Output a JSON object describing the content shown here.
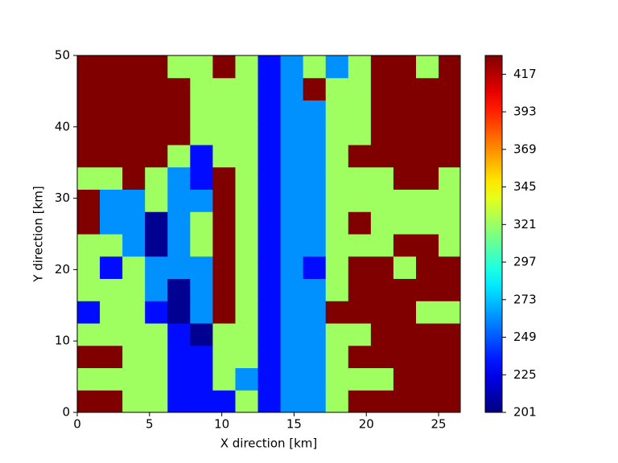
{
  "chart_data": {
    "type": "heatmap",
    "colormap": "jet",
    "xlabel": "X direction [km]",
    "ylabel": "Y direction [km]",
    "xlim": [
      0,
      26.5
    ],
    "ylim": [
      0,
      50
    ],
    "xticks": [
      0,
      5,
      10,
      15,
      20,
      25
    ],
    "yticks": [
      0,
      10,
      20,
      30,
      40,
      50
    ],
    "clim": [
      201,
      429
    ],
    "cticks": [
      201,
      225,
      249,
      273,
      297,
      321,
      345,
      369,
      393,
      417
    ],
    "x": [
      0.78125,
      2.34375,
      3.90625,
      5.46875,
      7.03125,
      8.59375,
      10.15625,
      11.71875,
      13.28125,
      14.84375,
      16.40625,
      17.96875,
      19.53125,
      21.09375,
      22.65625,
      24.21875,
      25.78125
    ],
    "y": [
      1.5625,
      4.6875,
      7.8125,
      10.9375,
      14.0625,
      17.1875,
      20.3125,
      23.4375,
      26.5625,
      29.6875,
      32.8125,
      35.9375,
      39.0625,
      42.1875,
      45.3125,
      48.4375
    ],
    "z": [
      [
        429,
        429,
        322,
        322,
        232,
        232,
        232,
        322,
        232,
        262,
        262,
        322,
        429,
        429,
        429,
        429,
        429
      ],
      [
        322,
        322,
        322,
        322,
        232,
        232,
        322,
        262,
        232,
        262,
        262,
        322,
        322,
        322,
        429,
        429,
        429
      ],
      [
        429,
        429,
        322,
        322,
        232,
        232,
        322,
        322,
        232,
        262,
        262,
        322,
        429,
        429,
        429,
        429,
        429
      ],
      [
        322,
        322,
        322,
        322,
        232,
        205,
        322,
        322,
        232,
        262,
        262,
        322,
        322,
        429,
        429,
        429,
        429
      ],
      [
        232,
        322,
        322,
        232,
        205,
        262,
        429,
        322,
        232,
        262,
        262,
        429,
        429,
        429,
        429,
        322,
        322
      ],
      [
        322,
        322,
        322,
        262,
        205,
        262,
        429,
        322,
        232,
        262,
        262,
        322,
        429,
        429,
        429,
        429,
        429
      ],
      [
        322,
        232,
        322,
        262,
        262,
        262,
        429,
        322,
        232,
        262,
        232,
        322,
        429,
        429,
        322,
        429,
        429
      ],
      [
        322,
        322,
        262,
        205,
        262,
        322,
        429,
        322,
        232,
        262,
        262,
        322,
        322,
        322,
        429,
        429,
        322
      ],
      [
        429,
        262,
        262,
        205,
        262,
        322,
        429,
        322,
        232,
        262,
        262,
        322,
        429,
        322,
        322,
        322,
        322
      ],
      [
        429,
        262,
        262,
        322,
        262,
        262,
        429,
        322,
        232,
        262,
        262,
        322,
        322,
        322,
        322,
        322,
        322
      ],
      [
        322,
        322,
        429,
        322,
        262,
        232,
        429,
        322,
        232,
        262,
        262,
        322,
        322,
        322,
        429,
        429,
        322
      ],
      [
        429,
        429,
        429,
        429,
        322,
        232,
        322,
        322,
        232,
        262,
        262,
        322,
        429,
        429,
        429,
        429,
        429
      ],
      [
        429,
        429,
        429,
        429,
        429,
        322,
        322,
        322,
        232,
        262,
        262,
        322,
        322,
        429,
        429,
        429,
        429
      ],
      [
        429,
        429,
        429,
        429,
        429,
        322,
        322,
        322,
        232,
        262,
        262,
        322,
        322,
        429,
        429,
        429,
        429
      ],
      [
        429,
        429,
        429,
        429,
        429,
        322,
        322,
        322,
        232,
        262,
        429,
        322,
        322,
        429,
        429,
        429,
        429
      ],
      [
        429,
        429,
        429,
        429,
        322,
        322,
        429,
        322,
        232,
        262,
        322,
        262,
        322,
        429,
        429,
        322,
        429
      ]
    ]
  }
}
